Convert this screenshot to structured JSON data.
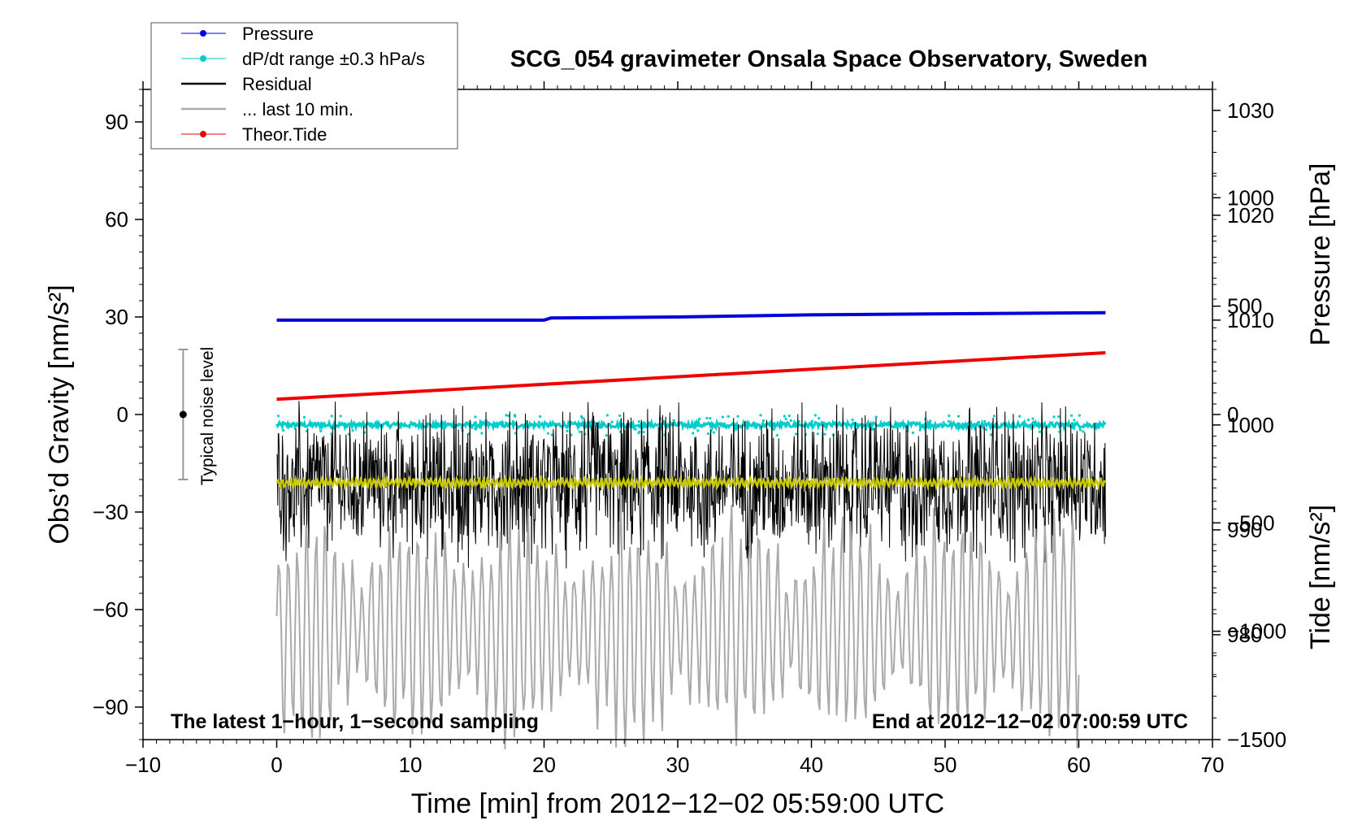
{
  "chart_data": {
    "type": "line",
    "title": "SCG_054 gravimeter Onsala Space Observatory, Sweden",
    "xlabel": "Time [min] from 2012−12−02 05:59:00 UTC",
    "ylabel_left": "Obs’d Gravity [nm/s²]",
    "ylabel_pressure": "Pressure [hPa]",
    "ylabel_tide": "Tide [nm/s²]",
    "xlim": [
      -10,
      70
    ],
    "ylim_left": [
      -100,
      100
    ],
    "ylim_pressure": [
      970,
      1032
    ],
    "ylim_tide": [
      -1500,
      1500
    ],
    "x_ticks": [
      "−10",
      "0",
      "10",
      "20",
      "30",
      "40",
      "50",
      "60",
      "70"
    ],
    "x_tick_values": [
      -10,
      0,
      10,
      20,
      30,
      40,
      50,
      60,
      70
    ],
    "y_left_ticks": [
      "90",
      "60",
      "30",
      "0",
      "−30",
      "−60",
      "−90"
    ],
    "y_left_tick_values": [
      90,
      60,
      30,
      0,
      -30,
      -60,
      -90
    ],
    "pressure_ticks": [
      "1030",
      "1020",
      "1010",
      "1000",
      "990",
      "980"
    ],
    "pressure_tick_values": [
      1030,
      1020,
      1010,
      1000,
      990,
      980
    ],
    "tide_ticks": [
      "1000",
      "500",
      "0",
      "−500",
      "−1000",
      "−1500"
    ],
    "tide_tick_values": [
      1000,
      500,
      0,
      -500,
      -1000,
      -1500
    ],
    "legend": [
      {
        "label": "Pressure",
        "color": "#0000ee",
        "marker": true
      },
      {
        "label": "dP/dt range ±0.3 hPa/s",
        "color": "#00cccc",
        "marker": true
      },
      {
        "label": "Residual",
        "color": "#000000",
        "marker": false
      },
      {
        "label": "... last 10 min.",
        "color": "#aaaaaa",
        "marker": false
      },
      {
        "label": "Theor.Tide",
        "color": "#ee0000",
        "marker": true
      }
    ],
    "annotations": {
      "bottom_left": "The latest 1−hour, 1−second sampling",
      "bottom_right": "End at 2012−12−02 07:00:59 UTC",
      "noise_label": "Typical noise level"
    },
    "noise_bar": {
      "x": -7,
      "center": 0,
      "low": -20,
      "high": 20
    },
    "series": [
      {
        "name": "Pressure",
        "axis": "pressure",
        "color": "#0000dd",
        "x": [
          0,
          10,
          20,
          20.5,
          30,
          40,
          50,
          62
        ],
        "values": [
          1010.0,
          1010.0,
          1010.0,
          1010.2,
          1010.3,
          1010.5,
          1010.6,
          1010.7
        ]
      },
      {
        "name": "dP/dt range ±0.3 hPa/s",
        "axis": "pressure",
        "color": "#00cccc",
        "x_range": [
          0,
          62
        ],
        "center": 1000.0,
        "spread": 0.5
      },
      {
        "name": "Residual",
        "axis": "left",
        "color": "#000000",
        "x_range": [
          0,
          62
        ],
        "center": -21,
        "envelope": 27
      },
      {
        "name": "Residual (smoothed)",
        "axis": "left",
        "color": "#c8c800",
        "x_range": [
          0,
          62
        ],
        "center": -21,
        "envelope": 3
      },
      {
        "name": "... last 10 min.",
        "axis": "left",
        "color": "#aaaaaa",
        "x_range": [
          0,
          60
        ],
        "center": -62,
        "envelope": 40
      },
      {
        "name": "Theor.Tide",
        "axis": "tide",
        "color": "#ee0000",
        "x": [
          0,
          62
        ],
        "values": [
          70,
          285
        ]
      }
    ]
  }
}
